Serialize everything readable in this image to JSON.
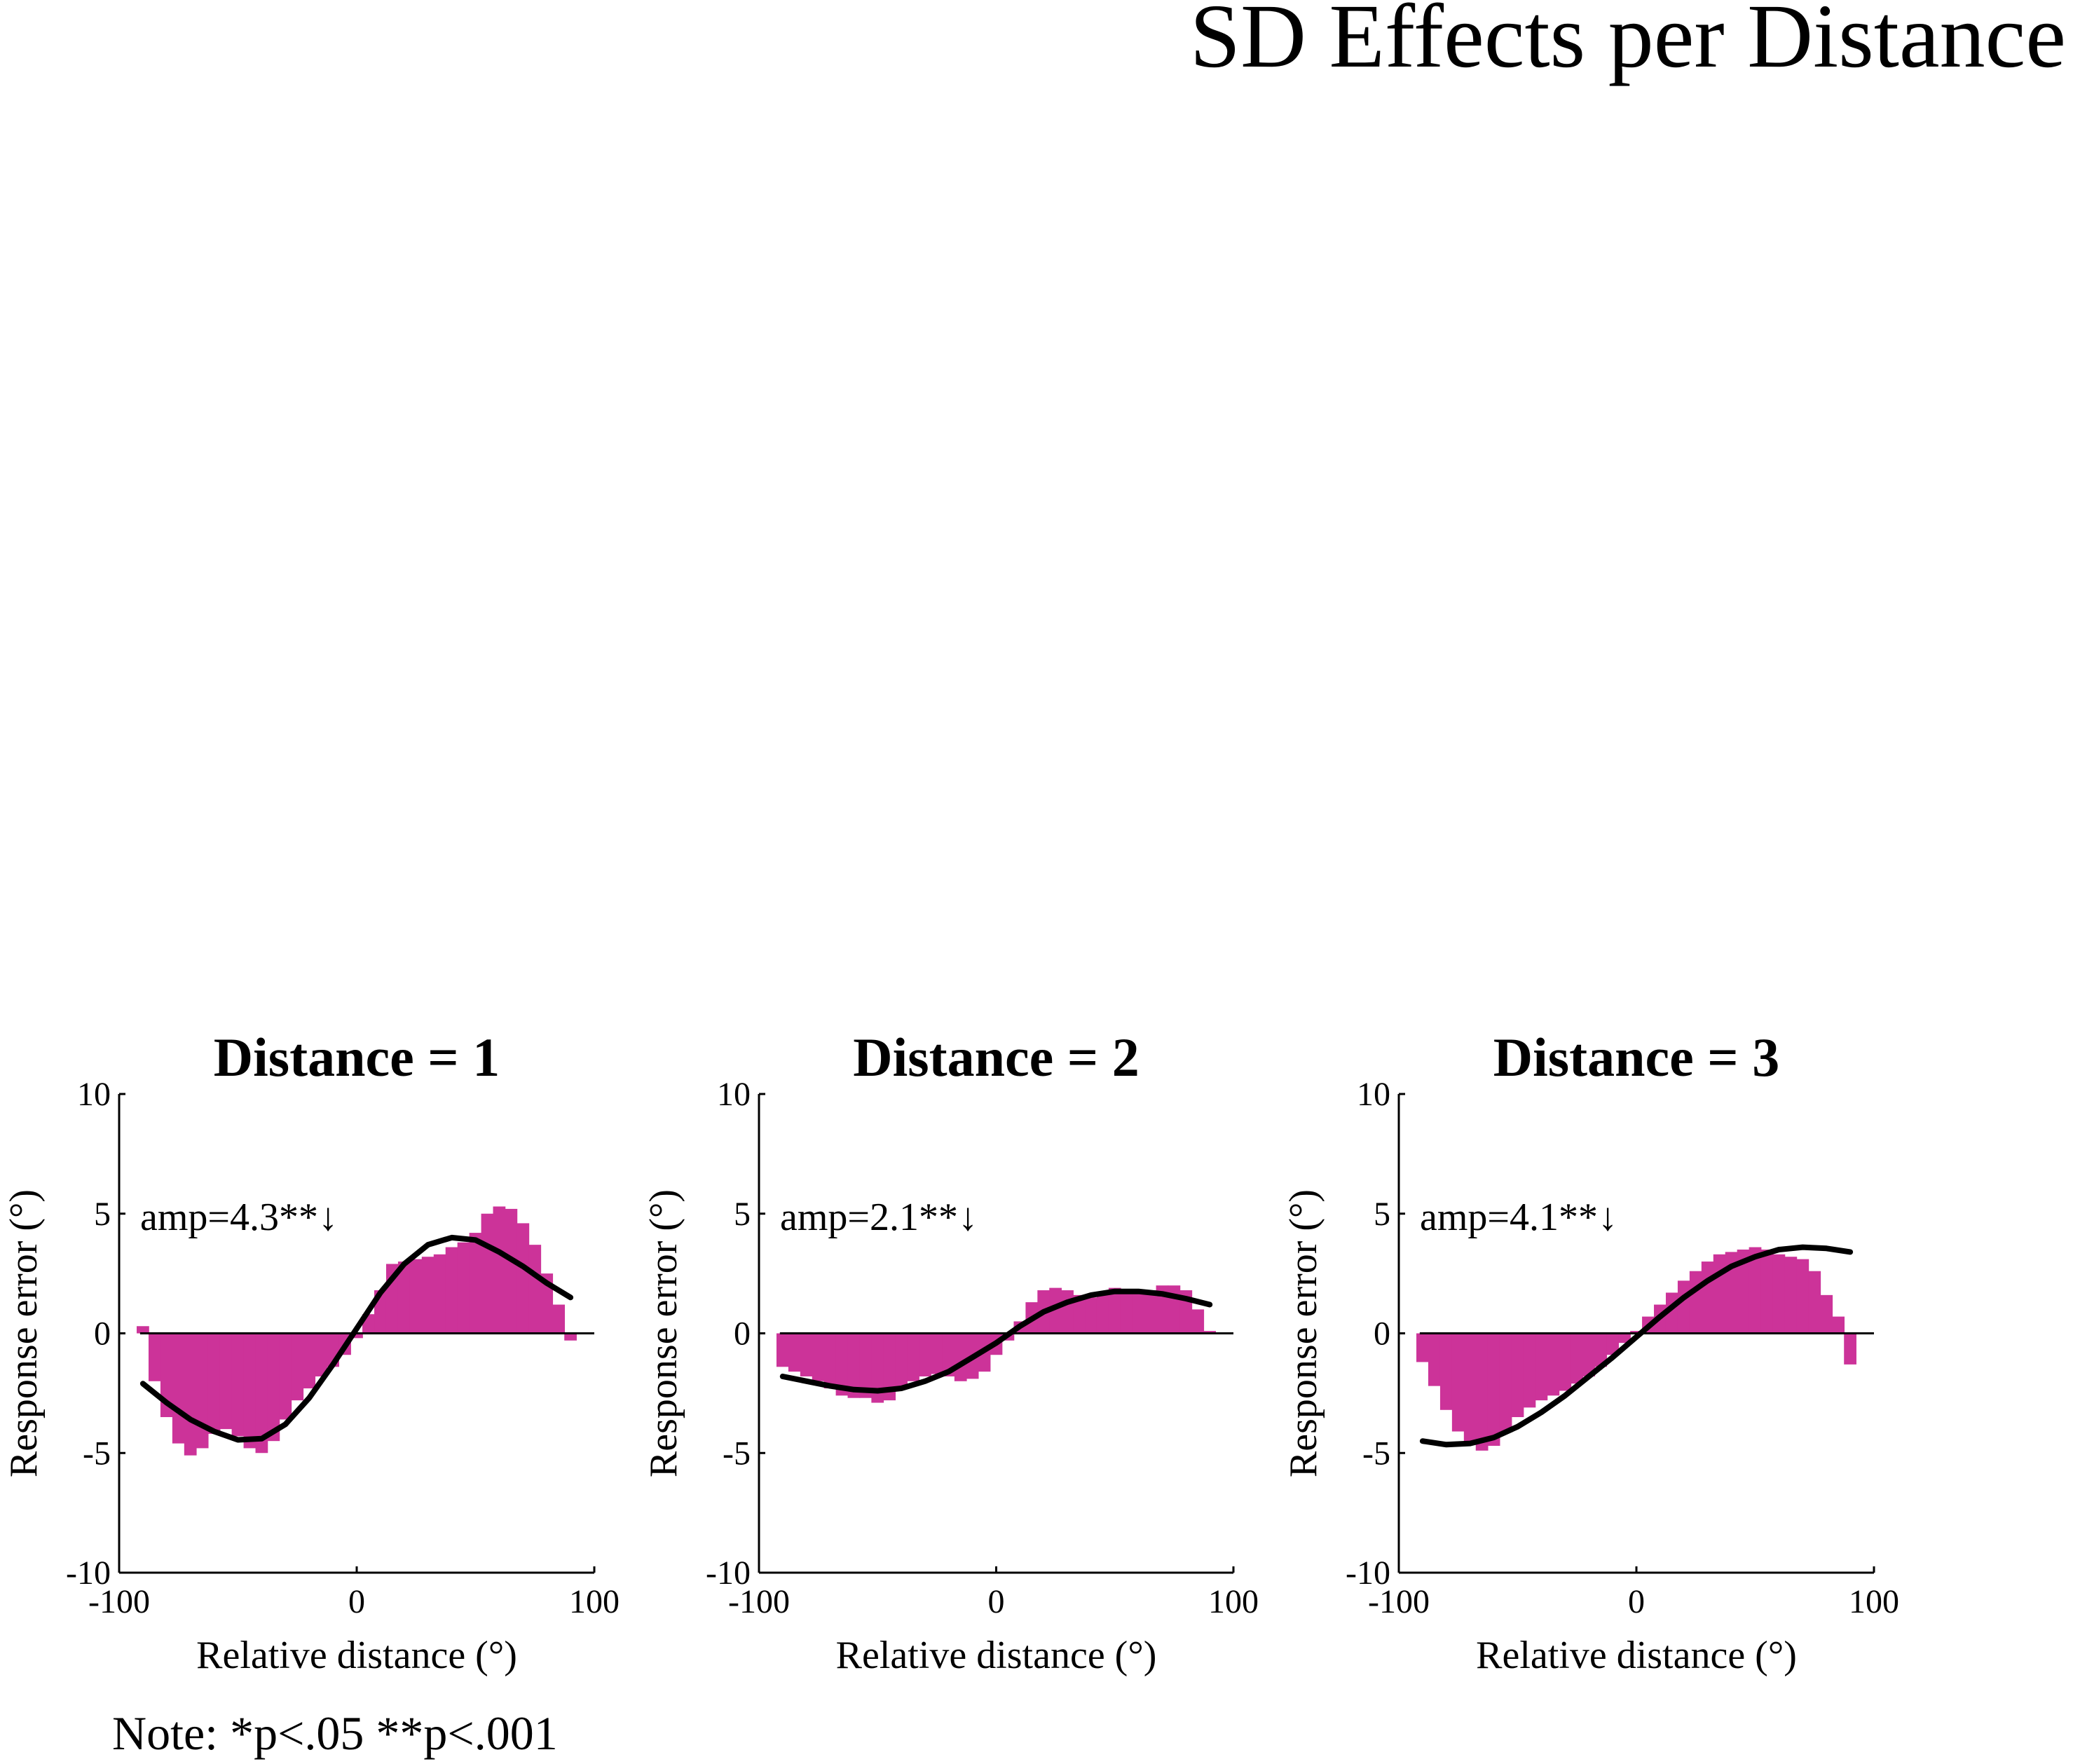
{
  "figure": {
    "title": "SD Effects per Distance",
    "note": "Note: *p<.05   **p<.001"
  },
  "colors": {
    "bars": "#cc3399",
    "curve": "#000000",
    "axis": "#000000"
  },
  "chart_data": [
    {
      "type": "area",
      "title": "Distance = 1",
      "xlabel": "Relative distance (°)",
      "ylabel": "Response error (°)",
      "xlim": [
        -100,
        100
      ],
      "ylim": [
        -10,
        10
      ],
      "xticks": [
        "-100",
        "0",
        "100"
      ],
      "yticks": [
        "-10",
        "-5",
        "0",
        "5",
        "10"
      ],
      "grid": false,
      "annotation": "amp=4.3**↓",
      "series": [
        {
          "kind": "bars",
          "x": [
            -90,
            -85,
            -80,
            -75,
            -70,
            -65,
            -60,
            -55,
            -50,
            -45,
            -40,
            -35,
            -30,
            -25,
            -20,
            -15,
            -10,
            -5,
            0,
            5,
            10,
            15,
            20,
            25,
            30,
            35,
            40,
            45,
            50,
            55,
            60,
            65,
            70,
            75,
            80,
            85,
            90
          ],
          "y": [
            0.3,
            -2.0,
            -3.5,
            -4.6,
            -5.1,
            -4.8,
            -4.2,
            -4.0,
            -4.3,
            -4.8,
            -5.0,
            -4.5,
            -3.6,
            -2.8,
            -2.3,
            -1.8,
            -1.4,
            -0.9,
            -0.2,
            0.8,
            1.8,
            2.9,
            3.0,
            3.1,
            3.2,
            3.3,
            3.6,
            3.8,
            4.2,
            5.0,
            5.3,
            5.2,
            4.6,
            3.7,
            2.5,
            1.2,
            -0.3
          ]
        },
        {
          "kind": "line",
          "x": [
            -90,
            -80,
            -70,
            -60,
            -50,
            -40,
            -30,
            -20,
            -10,
            0,
            10,
            20,
            30,
            40,
            50,
            60,
            70,
            80,
            90
          ],
          "y": [
            -2.1,
            -2.9,
            -3.6,
            -4.1,
            -4.45,
            -4.4,
            -3.8,
            -2.7,
            -1.3,
            0.2,
            1.7,
            2.9,
            3.7,
            4.0,
            3.9,
            3.4,
            2.8,
            2.1,
            1.5
          ]
        }
      ]
    },
    {
      "type": "area",
      "title": "Distance = 2",
      "xlabel": "Relative distance (°)",
      "ylabel": "Response error (°)",
      "xlim": [
        -100,
        100
      ],
      "ylim": [
        -10,
        10
      ],
      "xticks": [
        "-100",
        "0",
        "100"
      ],
      "yticks": [
        "-10",
        "-5",
        "0",
        "5",
        "10"
      ],
      "grid": false,
      "annotation": "amp=2.1**↓",
      "series": [
        {
          "kind": "bars",
          "x": [
            -90,
            -85,
            -80,
            -75,
            -70,
            -65,
            -60,
            -55,
            -50,
            -45,
            -40,
            -35,
            -30,
            -25,
            -20,
            -15,
            -10,
            -5,
            0,
            5,
            10,
            15,
            20,
            25,
            30,
            35,
            40,
            45,
            50,
            55,
            60,
            65,
            70,
            75,
            80,
            85,
            90
          ],
          "y": [
            -1.4,
            -1.6,
            -1.8,
            -2.0,
            -2.3,
            -2.6,
            -2.7,
            -2.7,
            -2.9,
            -2.8,
            -2.3,
            -2.0,
            -1.8,
            -1.7,
            -1.8,
            -2.0,
            -1.9,
            -1.6,
            -0.9,
            -0.3,
            0.5,
            1.3,
            1.8,
            1.9,
            1.8,
            1.6,
            1.5,
            1.6,
            1.9,
            1.8,
            1.7,
            1.8,
            2.0,
            2.0,
            1.8,
            1.0,
            0.1
          ]
        },
        {
          "kind": "line",
          "x": [
            -90,
            -80,
            -70,
            -60,
            -50,
            -40,
            -30,
            -20,
            -10,
            0,
            10,
            20,
            30,
            40,
            50,
            60,
            70,
            80,
            90
          ],
          "y": [
            -1.8,
            -2.0,
            -2.2,
            -2.35,
            -2.4,
            -2.3,
            -2.0,
            -1.6,
            -1.0,
            -0.4,
            0.3,
            0.9,
            1.3,
            1.6,
            1.75,
            1.75,
            1.65,
            1.45,
            1.2
          ]
        }
      ]
    },
    {
      "type": "area",
      "title": "Distance = 3",
      "xlabel": "Relative distance (°)",
      "ylabel": "Response error (°)",
      "xlim": [
        -100,
        100
      ],
      "ylim": [
        -10,
        10
      ],
      "xticks": [
        "-100",
        "0",
        "100"
      ],
      "yticks": [
        "-10",
        "-5",
        "0",
        "5",
        "10"
      ],
      "grid": false,
      "annotation": "amp=4.1**↓",
      "series": [
        {
          "kind": "bars",
          "x": [
            -90,
            -85,
            -80,
            -75,
            -70,
            -65,
            -60,
            -55,
            -50,
            -45,
            -40,
            -35,
            -30,
            -25,
            -20,
            -15,
            -10,
            -5,
            0,
            5,
            10,
            15,
            20,
            25,
            30,
            35,
            40,
            45,
            50,
            55,
            60,
            65,
            70,
            75,
            80,
            85,
            90
          ],
          "y": [
            -1.2,
            -2.2,
            -3.2,
            -4.1,
            -4.6,
            -4.9,
            -4.7,
            -4.1,
            -3.5,
            -3.1,
            -2.8,
            -2.6,
            -2.4,
            -2.1,
            -1.8,
            -1.4,
            -0.9,
            -0.4,
            0.1,
            0.7,
            1.2,
            1.7,
            2.2,
            2.6,
            3.0,
            3.3,
            3.4,
            3.5,
            3.6,
            3.5,
            3.3,
            3.2,
            3.1,
            2.6,
            1.6,
            0.7,
            -1.3
          ]
        },
        {
          "kind": "line",
          "x": [
            -90,
            -80,
            -70,
            -60,
            -50,
            -40,
            -30,
            -20,
            -10,
            0,
            10,
            20,
            30,
            40,
            50,
            60,
            70,
            80,
            90
          ],
          "y": [
            -4.5,
            -4.65,
            -4.6,
            -4.35,
            -3.9,
            -3.3,
            -2.6,
            -1.8,
            -1.0,
            -0.15,
            0.7,
            1.5,
            2.2,
            2.8,
            3.2,
            3.5,
            3.6,
            3.55,
            3.4
          ]
        }
      ]
    }
  ]
}
